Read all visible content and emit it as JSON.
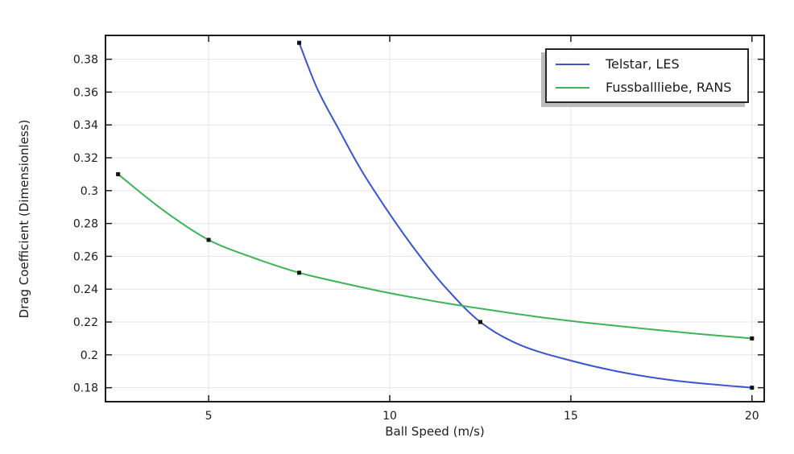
{
  "figure": {
    "background_color": "#ffffff",
    "text_color": "#1c1c1c",
    "axis_color": "#1c1c1c",
    "grid_color": "#e4e4e4",
    "marker_color": "#111111",
    "legend_shadow_color": "#bcbcbc"
  },
  "chart_data": {
    "type": "line",
    "title": "",
    "xlabel": "Ball Speed (m/s)",
    "ylabel": "Drag Coefficient (Dimensionless)",
    "xlim": [
      2.13,
      20.36
    ],
    "ylim": [
      0.171,
      0.395
    ],
    "xticks": [
      5,
      10,
      15,
      20
    ],
    "xtick_labels": [
      "5",
      "10",
      "15",
      "20"
    ],
    "yticks": [
      0.18,
      0.2,
      0.22,
      0.24,
      0.26,
      0.28,
      0.3,
      0.32,
      0.34,
      0.36,
      0.38
    ],
    "ytick_labels": [
      "0.18",
      "0.2",
      "0.22",
      "0.24",
      "0.26",
      "0.28",
      "0.3",
      "0.32",
      "0.34",
      "0.36",
      "0.38"
    ],
    "grid": true,
    "ticks_inward_all_sides": true,
    "legend_position": "top-right",
    "series": [
      {
        "name": "Telstar, LES",
        "color": "#3c55ce",
        "marker": "square",
        "data_points": [
          [
            7.5,
            0.39
          ],
          [
            12.5,
            0.22
          ],
          [
            20,
            0.18
          ]
        ],
        "curve": [
          [
            7.5,
            0.39
          ],
          [
            8.0,
            0.362
          ],
          [
            8.6,
            0.337
          ],
          [
            9.2,
            0.313
          ],
          [
            9.9,
            0.289
          ],
          [
            10.7,
            0.264
          ],
          [
            11.5,
            0.242
          ],
          [
            12.5,
            0.22
          ],
          [
            13.6,
            0.206
          ],
          [
            15.0,
            0.1965
          ],
          [
            16.5,
            0.189
          ],
          [
            18.0,
            0.184
          ],
          [
            20.0,
            0.18
          ]
        ]
      },
      {
        "name": "Fussballliebe, RANS",
        "color": "#3cb457",
        "marker": "square",
        "data_points": [
          [
            2.5,
            0.31
          ],
          [
            5,
            0.27
          ],
          [
            7.5,
            0.25
          ],
          [
            20,
            0.21
          ]
        ],
        "curve": [
          [
            2.5,
            0.31
          ],
          [
            3.75,
            0.288
          ],
          [
            5.0,
            0.27
          ],
          [
            6.25,
            0.259
          ],
          [
            7.5,
            0.25
          ],
          [
            8.75,
            0.2435
          ],
          [
            10.0,
            0.2376
          ],
          [
            11.25,
            0.2326
          ],
          [
            12.5,
            0.2282
          ],
          [
            14.0,
            0.2234
          ],
          [
            15.5,
            0.2194
          ],
          [
            17.0,
            0.216
          ],
          [
            18.5,
            0.2128
          ],
          [
            20.0,
            0.21
          ]
        ]
      }
    ]
  }
}
